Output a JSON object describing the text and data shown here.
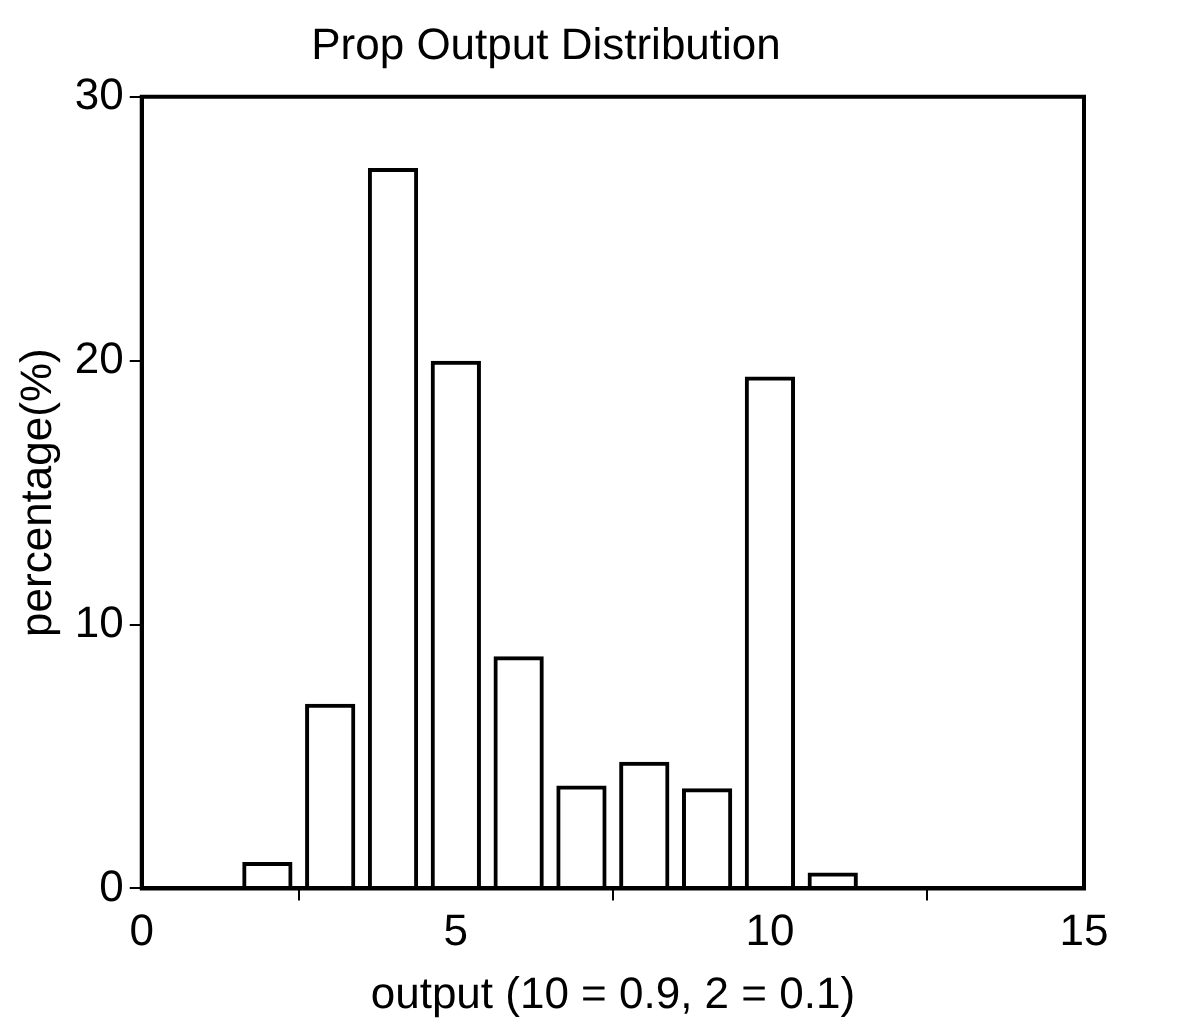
{
  "chart_data": {
    "type": "bar",
    "title": "Prop Output Distribution",
    "xlabel": "output (10 = 0.9, 2 = 0.1)",
    "ylabel": "percentage(%)",
    "x": [
      2,
      3,
      4,
      5,
      6,
      7,
      8,
      9,
      10,
      11
    ],
    "values": [
      1.0,
      7.0,
      27.3,
      20.0,
      8.8,
      3.9,
      4.8,
      3.8,
      19.4,
      0.6
    ],
    "color": "#000000",
    "xlim": [
      0,
      15
    ],
    "xticks": [
      0,
      5,
      10,
      15
    ],
    "ylim": [
      0,
      30
    ],
    "yticks": [
      0,
      10,
      20,
      30
    ],
    "grid": false,
    "legend": false
  }
}
